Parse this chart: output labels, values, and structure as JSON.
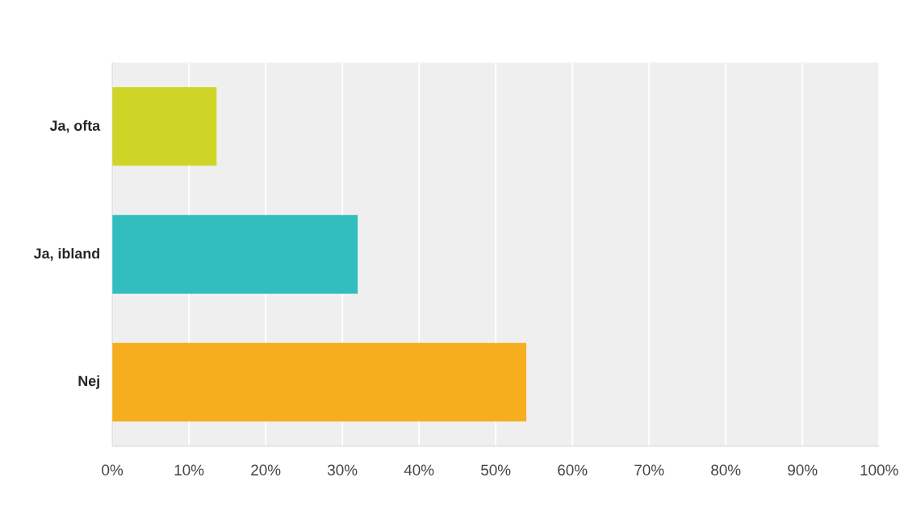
{
  "chart_data": {
    "type": "bar",
    "orientation": "horizontal",
    "categories": [
      "Ja, ofta",
      "Ja, ibland",
      "Nej"
    ],
    "values": [
      13.6,
      32,
      54
    ],
    "colors": [
      "#cfd526",
      "#32bdbf",
      "#f6ae1e"
    ],
    "xlim": [
      0,
      100
    ],
    "xticks": [
      {
        "value": 0,
        "label": "0%"
      },
      {
        "value": 10,
        "label": "10%"
      },
      {
        "value": 20,
        "label": "20%"
      },
      {
        "value": 30,
        "label": "30%"
      },
      {
        "value": 40,
        "label": "40%"
      },
      {
        "value": 50,
        "label": "50%"
      },
      {
        "value": 60,
        "label": "60%"
      },
      {
        "value": 70,
        "label": "70%"
      },
      {
        "value": 80,
        "label": "80%"
      },
      {
        "value": 90,
        "label": "90%"
      },
      {
        "value": 100,
        "label": "100%"
      }
    ],
    "grid": "x"
  }
}
